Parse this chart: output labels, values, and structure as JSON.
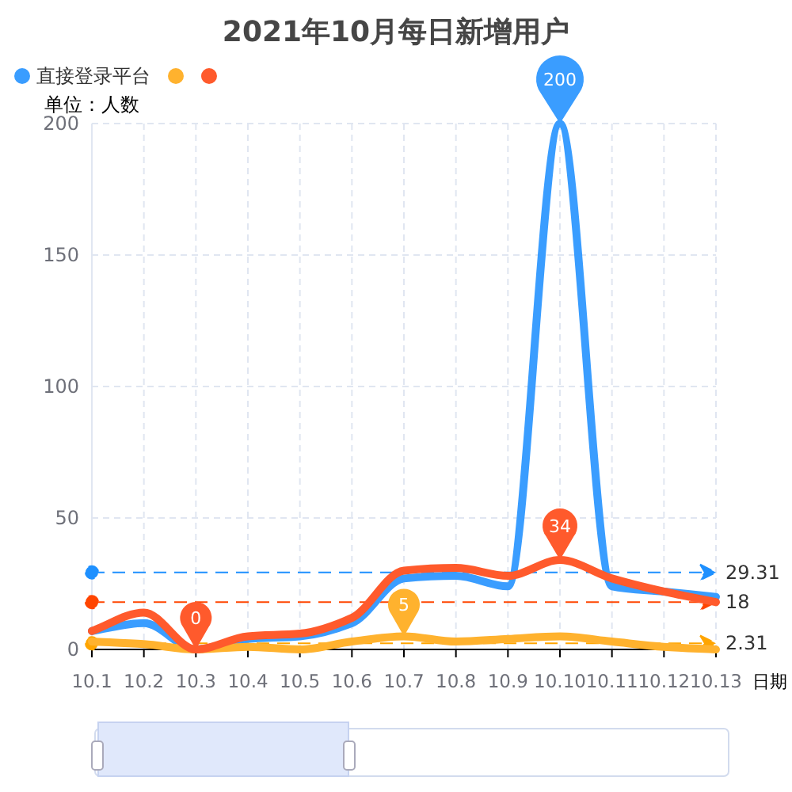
{
  "chart_data": {
    "type": "line",
    "title": "2021年10月每日新增用户",
    "ylabel": "单位：人数",
    "xlabel": "日期",
    "categories": [
      "10.1",
      "10.2",
      "10.3",
      "10.4",
      "10.5",
      "10.6",
      "10.7",
      "10.8",
      "10.9",
      "10.10",
      "10.11",
      "10.12",
      "10.13"
    ],
    "series": [
      {
        "name": "直接登录平台",
        "color": "#3a9dff",
        "values": [
          7,
          10,
          0,
          4,
          5,
          10,
          27,
          28,
          24,
          200,
          24,
          22,
          20
        ]
      },
      {
        "color": "#ffb22e",
        "values": [
          3,
          2,
          0,
          1,
          0,
          3,
          5,
          3,
          4,
          5,
          3,
          1,
          0
        ]
      },
      {
        "color": "#ff5a2c",
        "values": [
          7,
          14,
          0,
          5,
          6,
          12,
          30,
          31,
          28,
          34,
          27,
          22,
          18
        ]
      }
    ],
    "ylim": [
      0,
      200
    ],
    "yticks": [
      0,
      50,
      100,
      150,
      200
    ],
    "grid": true,
    "legend": "top left",
    "marker": "none",
    "line_style": "solid",
    "ref_lines": [
      {
        "axis": "y",
        "value": 29.31,
        "label": "29.31",
        "color": "#1e90ff",
        "line_style": "dashed"
      },
      {
        "axis": "y",
        "value": 18,
        "label": "18",
        "color": "#ff4500",
        "line_style": "dashed"
      },
      {
        "axis": "y",
        "value": 2.31,
        "label": "2.31",
        "color": "#ffa500",
        "line_style": "dashed"
      }
    ],
    "annotations": [
      {
        "text": "200",
        "x": "10.10",
        "y": 200
      },
      {
        "text": "0",
        "x": "10.3",
        "y": 0
      },
      {
        "text": "5",
        "x": "10.7",
        "y": 5
      },
      {
        "text": "34",
        "x": "10.10",
        "y": 34
      }
    ]
  }
}
